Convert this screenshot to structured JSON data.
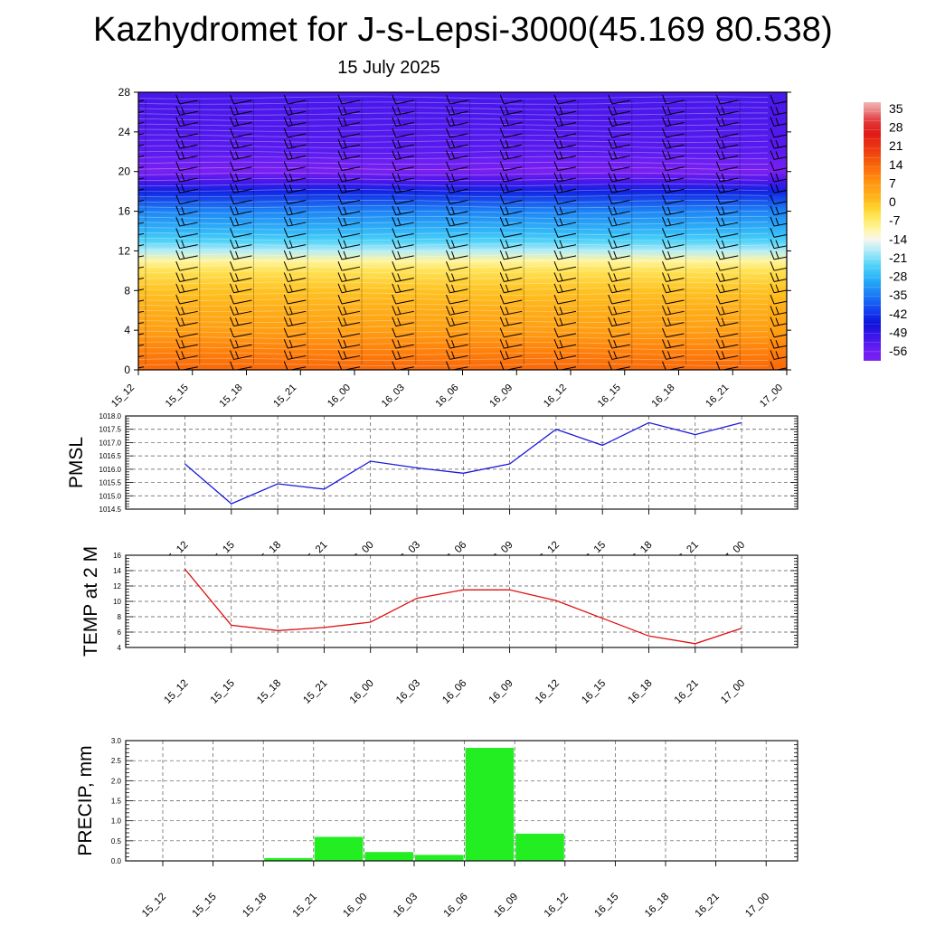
{
  "title": "Kazhydromet for J-s-Lepsi-3000(45.169 80.538)",
  "subtitle": "15 July 2025",
  "time_labels": [
    "15_12",
    "15_15",
    "15_18",
    "15_21",
    "16_00",
    "16_03",
    "16_06",
    "16_09",
    "16_12",
    "16_15",
    "16_18",
    "16_21",
    "17_00"
  ],
  "colors": {
    "pmsl_line": "#1a1adb",
    "temp_line": "#e01010",
    "precip_bar": "#22ee22",
    "grid": "#555555"
  },
  "chart_data": [
    {
      "type": "heatmap",
      "title": "",
      "xlabel": "",
      "ylabel": "",
      "x": [
        "15_12",
        "15_15",
        "15_18",
        "15_21",
        "16_00",
        "16_03",
        "16_06",
        "16_09",
        "16_12",
        "16_15",
        "16_18",
        "16_21",
        "17_00"
      ],
      "yticks": [
        0,
        4,
        8,
        12,
        16,
        20,
        24,
        28
      ],
      "ylim": [
        0,
        28
      ],
      "colorbar": {
        "labels": [
          "35",
          "28",
          "21",
          "14",
          "7",
          "0",
          "-7",
          "-14",
          "-21",
          "-28",
          "-35",
          "-42",
          "-49",
          "-56"
        ],
        "range": [
          -60,
          38
        ]
      },
      "temperature_profile": {
        "height": [
          0,
          2,
          4,
          6,
          8,
          10,
          11,
          12,
          13,
          14,
          16,
          18,
          19,
          20,
          21,
          22,
          24,
          28
        ],
        "value": [
          14,
          10,
          6,
          3,
          0,
          -5,
          -10,
          -18,
          -24,
          -28,
          -34,
          -44,
          -52,
          -60,
          -56,
          -54,
          -53,
          -52
        ]
      },
      "wind_barbs": "present"
    },
    {
      "type": "line",
      "ylabel": "PMSL",
      "x": [
        "15_12",
        "15_15",
        "15_18",
        "15_21",
        "16_00",
        "16_03",
        "16_06",
        "16_09",
        "16_12",
        "16_15",
        "16_18",
        "16_21",
        "17_00"
      ],
      "yticks": [
        "1014.5",
        "1015.0",
        "1015.5",
        "1016.0",
        "1016.5",
        "1017.0",
        "1017.5",
        "1018.0"
      ],
      "ylim": [
        1014.5,
        1018.0
      ],
      "series": [
        {
          "values": [
            1016.2,
            1014.7,
            1015.45,
            1015.25,
            1016.3,
            1016.05,
            1015.85,
            1016.2,
            1017.5,
            1016.9,
            1017.75,
            1017.3,
            1017.75
          ]
        }
      ],
      "grid": true
    },
    {
      "type": "line",
      "ylabel": "TEMP at 2 M",
      "x": [
        "15_12",
        "15_15",
        "15_18",
        "15_21",
        "16_00",
        "16_03",
        "16_06",
        "16_09",
        "16_12",
        "16_15",
        "16_18",
        "16_21",
        "17_00"
      ],
      "yticks": [
        "4",
        "6",
        "8",
        "10",
        "12",
        "14",
        "16"
      ],
      "ylim": [
        4,
        16
      ],
      "series": [
        {
          "values": [
            14.2,
            6.9,
            6.2,
            6.6,
            7.3,
            10.4,
            11.5,
            11.5,
            10.1,
            7.8,
            5.5,
            4.5,
            6.5
          ]
        }
      ],
      "grid": true
    },
    {
      "type": "bar",
      "ylabel": "PRECIP, mm",
      "categories": [
        "15_12",
        "15_15",
        "15_18",
        "15_21",
        "16_00",
        "16_03",
        "16_06",
        "16_09",
        "16_12",
        "16_15",
        "16_18",
        "16_21",
        "17_00"
      ],
      "yticks": [
        "0.0",
        "0.5",
        "1.0",
        "1.5",
        "2.0",
        "2.5",
        "3.0"
      ],
      "ylim": [
        0,
        3.0
      ],
      "bars": [
        {
          "start": "15_18",
          "end": "15_21",
          "value": 0.07
        },
        {
          "start": "15_21",
          "end": "16_00",
          "value": 0.6
        },
        {
          "start": "16_00",
          "end": "16_03",
          "value": 0.22
        },
        {
          "start": "16_03",
          "end": "16_06",
          "value": 0.15
        },
        {
          "start": "16_06",
          "end": "16_09",
          "value": 2.82
        },
        {
          "start": "16_09",
          "end": "16_12",
          "value": 0.68
        }
      ],
      "grid": true
    }
  ]
}
